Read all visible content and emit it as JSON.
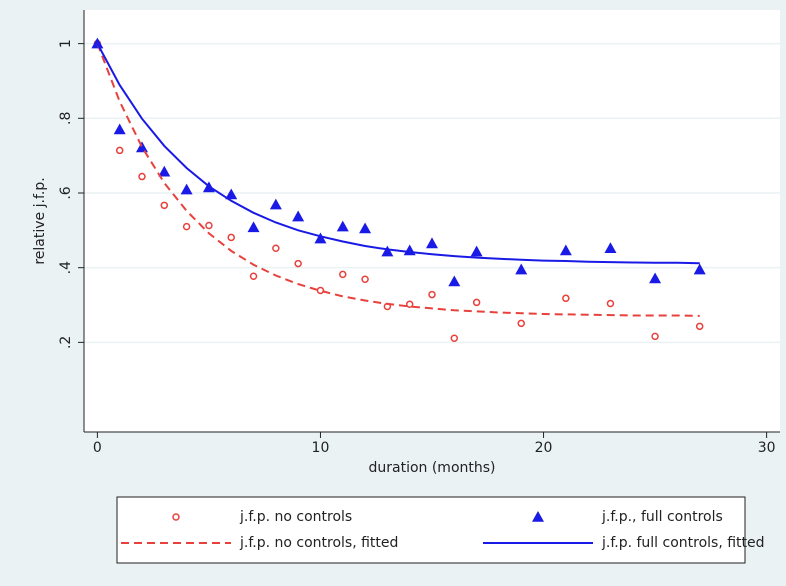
{
  "chart_data": {
    "type": "scatter",
    "x_label": "duration (months)",
    "y_label": "relative j.f.p.",
    "xlim": [
      -0.6,
      30.6
    ],
    "ylim": [
      -0.04,
      1.09
    ],
    "xticks": [
      0,
      10,
      20,
      30
    ],
    "yticks": [
      {
        "value": 0.2,
        "label": ".2"
      },
      {
        "value": 0.4,
        "label": ".4"
      },
      {
        "value": 0.6,
        "label": ".6"
      },
      {
        "value": 0.8,
        "label": ".8"
      },
      1
    ],
    "grid": true,
    "series": [
      {
        "name": "j.f.p. no controls",
        "kind": "circle",
        "color": "#e8413c",
        "x": [
          0,
          1,
          2,
          3,
          4,
          5,
          6,
          7,
          8,
          9,
          10,
          11,
          12,
          13,
          14,
          15,
          16,
          17,
          19,
          21,
          23,
          25,
          27
        ],
        "values": [
          1.0,
          0.714,
          0.644,
          0.567,
          0.51,
          0.513,
          0.481,
          0.377,
          0.452,
          0.411,
          0.339,
          0.382,
          0.369,
          0.296,
          0.302,
          0.328,
          0.211,
          0.307,
          0.251,
          0.318,
          0.304,
          0.216,
          0.243
        ]
      },
      {
        "name": "j.f.p., full controls",
        "kind": "triangle",
        "color": "#1a1ae6",
        "x": [
          0,
          1,
          2,
          3,
          4,
          5,
          6,
          7,
          8,
          9,
          10,
          11,
          12,
          13,
          14,
          15,
          16,
          17,
          19,
          21,
          23,
          25,
          27
        ],
        "values": [
          1.0,
          0.77,
          0.722,
          0.657,
          0.609,
          0.615,
          0.596,
          0.508,
          0.569,
          0.537,
          0.478,
          0.51,
          0.505,
          0.443,
          0.446,
          0.465,
          0.363,
          0.443,
          0.395,
          0.446,
          0.452,
          0.371,
          0.395
        ]
      },
      {
        "name": "j.f.p. no controls, fitted",
        "kind": "dashed",
        "color": "#e8413c",
        "x": [
          0,
          1,
          2,
          3,
          4,
          5,
          6,
          7,
          8,
          9,
          10,
          11,
          12,
          13,
          14,
          15,
          16,
          17,
          18,
          19,
          20,
          21,
          22,
          23,
          24,
          25,
          26,
          27
        ],
        "values": [
          1.0,
          0.845,
          0.723,
          0.627,
          0.552,
          0.492,
          0.445,
          0.408,
          0.379,
          0.356,
          0.338,
          0.323,
          0.312,
          0.303,
          0.296,
          0.291,
          0.286,
          0.283,
          0.28,
          0.278,
          0.276,
          0.275,
          0.274,
          0.273,
          0.272,
          0.272,
          0.272,
          0.271
        ]
      },
      {
        "name": "j.f.p. full controls, fitted",
        "kind": "solid",
        "color": "#1a1ae6",
        "x": [
          0,
          1,
          2,
          3,
          4,
          5,
          6,
          7,
          8,
          9,
          10,
          11,
          12,
          13,
          14,
          15,
          16,
          17,
          18,
          19,
          20,
          21,
          22,
          23,
          24,
          25,
          26,
          27
        ],
        "values": [
          1.0,
          0.889,
          0.799,
          0.726,
          0.667,
          0.618,
          0.579,
          0.547,
          0.521,
          0.5,
          0.484,
          0.47,
          0.458,
          0.449,
          0.442,
          0.436,
          0.431,
          0.427,
          0.424,
          0.421,
          0.419,
          0.418,
          0.416,
          0.415,
          0.414,
          0.413,
          0.413,
          0.412
        ]
      }
    ]
  }
}
